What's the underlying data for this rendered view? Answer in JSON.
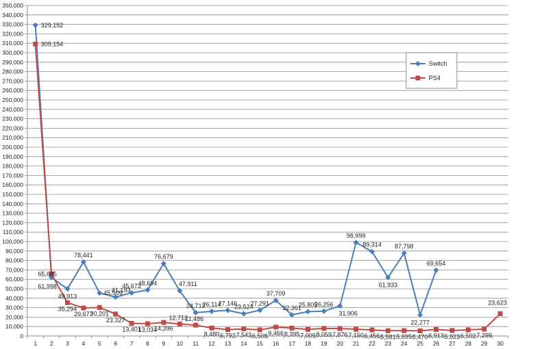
{
  "chart_data": {
    "type": "line",
    "x": [
      1,
      2,
      3,
      4,
      5,
      6,
      7,
      8,
      9,
      10,
      11,
      12,
      13,
      14,
      15,
      16,
      17,
      18,
      19,
      20,
      21,
      22,
      23,
      24,
      25,
      26,
      27,
      28,
      29,
      30
    ],
    "ylim": [
      0,
      350000
    ],
    "yticks": [
      "0",
      "10,000",
      "20,000",
      "30,000",
      "40,000",
      "50,000",
      "60,000",
      "70,000",
      "80,000",
      "90,000",
      "100,000",
      "110,000",
      "120,000",
      "130,000",
      "140,000",
      "150,000",
      "160,000",
      "170,000",
      "180,000",
      "190,000",
      "200,000",
      "210,000",
      "220,000",
      "230,000",
      "240,000",
      "250,000",
      "260,000",
      "270,000",
      "280,000",
      "290,000",
      "300,000",
      "310,000",
      "320,000",
      "330,000",
      "340,000",
      "350,000"
    ],
    "grid": true,
    "legend_position": "right",
    "series": [
      {
        "name": "Switch",
        "color": "#4a7ebb",
        "marker": "diamond",
        "values": [
          329152,
          61998,
          49913,
          78441,
          45509,
          41193,
          45673,
          48694,
          76679,
          47911,
          24712,
          26114,
          27146,
          23524,
          27291,
          37709,
          22361,
          25805,
          26256,
          31906,
          98999,
          89314,
          61933,
          87798,
          22277,
          69654,
          null,
          null,
          null,
          null
        ],
        "labels": [
          "329,152",
          "61,998",
          "49,913",
          "78,441",
          "45,509",
          "41,193",
          "45,673",
          "48,694",
          "76,679",
          "47,911",
          "24,712",
          "26,114",
          "27,146",
          "23,524",
          "27,291",
          "37,709",
          "22,361",
          "25,805",
          "26,256",
          "31,906",
          "98,999",
          "89,314",
          "61,933",
          "87,798",
          "22,277",
          "69,654",
          null,
          null,
          null,
          null
        ]
      },
      {
        "name": "PS4",
        "color": "#be4b48",
        "marker": "square",
        "values": [
          309154,
          65685,
          35294,
          29677,
          30201,
          23327,
          13401,
          13034,
          14396,
          12712,
          11486,
          8480,
          6792,
          7543,
          6508,
          9466,
          8395,
          7009,
          8059,
          7876,
          7150,
          6456,
          5581,
          5695,
          5470,
          6913,
          5923,
          6502,
          7299,
          23623
        ],
        "labels": [
          "309,154",
          "65,685",
          "35,294",
          "29,677",
          "30,201",
          "23,327",
          "13,401",
          "13,034",
          "14,396",
          "12,712",
          "11,486",
          "8,480",
          "6,792",
          "7,543",
          "6,508",
          "9,466",
          "8,395",
          "7,009",
          "8,059",
          "7,876",
          "7,150",
          "6,456",
          "5,581",
          "5,695",
          "5,470",
          "6,913",
          "5,923",
          "6,502",
          "7,299",
          "23,623"
        ]
      }
    ]
  }
}
